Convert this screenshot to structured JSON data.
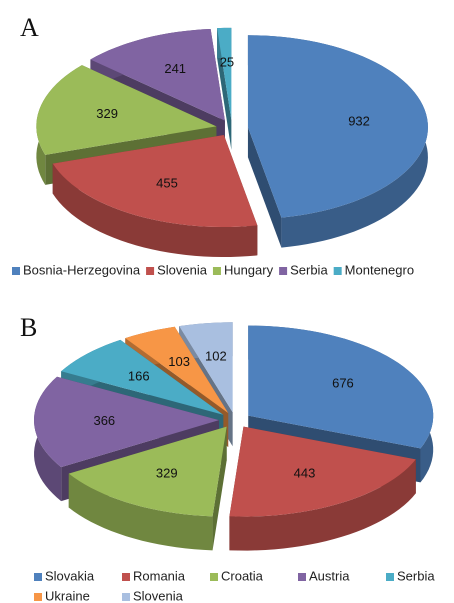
{
  "chart_data": [
    {
      "type": "pie",
      "title": "A",
      "categories": [
        "Bosnia-Herzegovina",
        "Slovenia",
        "Hungary",
        "Serbia",
        "Montenegro"
      ],
      "values": [
        932,
        455,
        329,
        241,
        25
      ],
      "colors": [
        "#4f81bd",
        "#c0504d",
        "#9bbb59",
        "#8064a2",
        "#4bacc6"
      ]
    },
    {
      "type": "pie",
      "title": "B",
      "categories": [
        "Slovakia",
        "Romania",
        "Croatia",
        "Austria",
        "Serbia",
        "Ukraine",
        "Slovenia"
      ],
      "values": [
        676,
        443,
        329,
        366,
        166,
        103,
        102
      ],
      "colors": [
        "#4f81bd",
        "#c0504d",
        "#9bbb59",
        "#8064a2",
        "#4bacc6",
        "#f79646",
        "#a9bfe0"
      ]
    }
  ]
}
